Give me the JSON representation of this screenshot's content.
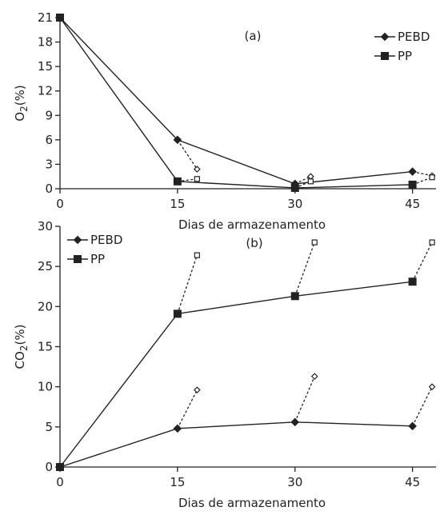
{
  "chart_data": [
    {
      "type": "line",
      "panel_label": "(a)",
      "xlabel": "Dias de armazenamento",
      "ylabel": {
        "main": "O",
        "sub": "2",
        "rest": "(%)"
      },
      "x_ticks": [
        "0",
        "15",
        "30",
        "45"
      ],
      "y_ticks": [
        "0",
        "3",
        "6",
        "9",
        "12",
        "15",
        "18",
        "21"
      ],
      "xlim": [
        0,
        48
      ],
      "ylim": [
        0,
        21
      ],
      "legend_position": "top-right",
      "series": [
        {
          "name": "PEBD",
          "marker": "diamond",
          "x": [
            0,
            15,
            30,
            45
          ],
          "y": [
            21,
            6,
            0.6,
            2.1
          ]
        },
        {
          "name": "PP",
          "marker": "square",
          "x": [
            0,
            15,
            30,
            45
          ],
          "y": [
            21,
            0.9,
            0.1,
            0.5
          ]
        }
      ],
      "branches": [
        {
          "series": "PEBD",
          "from": [
            15,
            6
          ],
          "to": [
            17.5,
            2.4
          ],
          "marker": "open-diamond"
        },
        {
          "series": "PP",
          "from": [
            15,
            0.9
          ],
          "to": [
            17.5,
            1.2
          ],
          "marker": "open-square"
        },
        {
          "series": "PEBD",
          "from": [
            30,
            0.6
          ],
          "to": [
            32,
            1.5
          ],
          "marker": "open-diamond"
        },
        {
          "series": "PP",
          "from": [
            30,
            0.1
          ],
          "to": [
            32,
            0.9
          ],
          "marker": "open-square"
        },
        {
          "series": "PEBD",
          "from": [
            45,
            2.1
          ],
          "to": [
            47.5,
            1.6
          ],
          "marker": "open-diamond"
        },
        {
          "series": "PP",
          "from": [
            45,
            0.5
          ],
          "to": [
            47.5,
            1.4
          ],
          "marker": "open-square"
        }
      ]
    },
    {
      "type": "line",
      "panel_label": "(b)",
      "xlabel": "Dias de armazenamento",
      "ylabel": {
        "main": "CO",
        "sub": "2",
        "rest": "(%)"
      },
      "x_ticks": [
        "0",
        "15",
        "30",
        "45"
      ],
      "y_ticks": [
        "0",
        "5",
        "10",
        "15",
        "20",
        "25",
        "30"
      ],
      "xlim": [
        0,
        48
      ],
      "ylim": [
        0,
        30
      ],
      "legend_position": "top-left",
      "series": [
        {
          "name": "PEBD",
          "marker": "diamond",
          "x": [
            0,
            15,
            30,
            45
          ],
          "y": [
            0,
            4.8,
            5.6,
            5.1
          ]
        },
        {
          "name": "PP",
          "marker": "square",
          "x": [
            0,
            15,
            30,
            45
          ],
          "y": [
            0,
            19.1,
            21.3,
            23.1
          ]
        }
      ],
      "branches": [
        {
          "series": "PEBD",
          "from": [
            15,
            4.8
          ],
          "to": [
            17.5,
            9.6
          ],
          "marker": "open-diamond"
        },
        {
          "series": "PP",
          "from": [
            15,
            19.1
          ],
          "to": [
            17.5,
            26.4
          ],
          "marker": "open-square"
        },
        {
          "series": "PEBD",
          "from": [
            30,
            5.6
          ],
          "to": [
            32.5,
            11.3
          ],
          "marker": "open-diamond"
        },
        {
          "series": "PP",
          "from": [
            30,
            21.3
          ],
          "to": [
            32.5,
            28
          ],
          "marker": "open-square"
        },
        {
          "series": "PEBD",
          "from": [
            45,
            5.1
          ],
          "to": [
            47.5,
            10
          ],
          "marker": "open-diamond"
        },
        {
          "series": "PP",
          "from": [
            45,
            23.1
          ],
          "to": [
            47.5,
            28
          ],
          "marker": "open-square"
        }
      ]
    }
  ]
}
